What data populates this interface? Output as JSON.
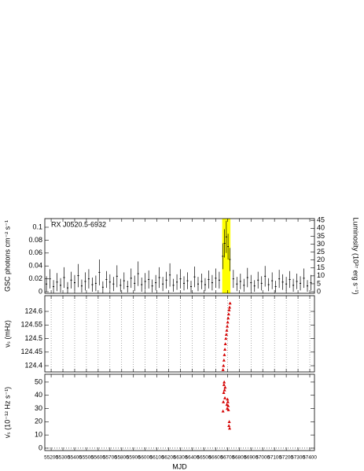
{
  "chart_data": [
    {
      "type": "errorbar",
      "annotation": "RX J0520.5-6932",
      "ylabel": "GSC photons cm⁻² s⁻¹",
      "y2label": "Luminosity (10³⁷ erg s⁻¹)",
      "color": "#000000",
      "highlight": [
        56655,
        56725
      ],
      "highlight_color": "#ffff00",
      "x": [
        55160,
        55190,
        55220,
        55250,
        55280,
        55310,
        55340,
        55370,
        55400,
        55430,
        55460,
        55490,
        55520,
        55550,
        55580,
        55610,
        55640,
        55670,
        55700,
        55730,
        55760,
        55790,
        55820,
        55850,
        55880,
        55910,
        55940,
        55970,
        56000,
        56030,
        56060,
        56090,
        56120,
        56150,
        56180,
        56210,
        56240,
        56270,
        56300,
        56330,
        56360,
        56390,
        56420,
        56450,
        56480,
        56510,
        56540,
        56570,
        56600,
        56630,
        56660,
        56675,
        56690,
        56705,
        56720,
        56750,
        56780,
        56810,
        56840,
        56870,
        56900,
        56930,
        56960,
        56990,
        57020,
        57050,
        57080,
        57110,
        57140,
        57170,
        57200,
        57230,
        57260,
        57290,
        57320,
        57350,
        57380,
        57410
      ],
      "values": [
        0.012,
        0.02,
        0.008,
        0.015,
        0.01,
        0.022,
        0.006,
        0.018,
        0.014,
        0.025,
        0.009,
        0.016,
        0.02,
        0.011,
        0.013,
        0.03,
        0.007,
        0.019,
        0.015,
        0.012,
        0.024,
        0.01,
        0.017,
        0.008,
        0.021,
        0.013,
        0.028,
        0.011,
        0.016,
        0.019,
        0.009,
        0.014,
        0.022,
        0.012,
        0.018,
        0.026,
        0.01,
        0.015,
        0.02,
        0.013,
        0.017,
        0.008,
        0.023,
        0.012,
        0.016,
        0.011,
        0.019,
        0.014,
        0.021,
        0.018,
        0.055,
        0.075,
        0.085,
        0.07,
        0.05,
        0.02,
        0.012,
        0.016,
        0.01,
        0.022,
        0.014,
        0.009,
        0.018,
        0.013,
        0.024,
        0.011,
        0.017,
        0.008,
        0.02,
        0.015,
        0.012,
        0.019,
        0.01,
        0.016,
        0.013,
        0.021,
        0.009,
        0.014
      ],
      "errors": [
        0.012,
        0.015,
        0.01,
        0.014,
        0.011,
        0.016,
        0.009,
        0.013,
        0.012,
        0.018,
        0.01,
        0.014,
        0.015,
        0.011,
        0.012,
        0.02,
        0.009,
        0.013,
        0.012,
        0.011,
        0.017,
        0.01,
        0.013,
        0.009,
        0.015,
        0.012,
        0.019,
        0.011,
        0.013,
        0.014,
        0.01,
        0.012,
        0.016,
        0.011,
        0.013,
        0.018,
        0.01,
        0.012,
        0.015,
        0.011,
        0.013,
        0.009,
        0.016,
        0.011,
        0.012,
        0.01,
        0.014,
        0.012,
        0.015,
        0.013,
        0.02,
        0.022,
        0.025,
        0.02,
        0.018,
        0.014,
        0.011,
        0.012,
        0.01,
        0.015,
        0.012,
        0.009,
        0.013,
        0.011,
        0.016,
        0.01,
        0.013,
        0.009,
        0.014,
        0.012,
        0.011,
        0.013,
        0.01,
        0.012,
        0.011,
        0.015,
        0.009,
        0.012
      ],
      "xlim": [
        55146,
        57440
      ],
      "ylim": [
        -0.0024,
        0.1134
      ],
      "yticks": [
        0,
        0.02,
        0.04,
        0.06,
        0.08,
        0.1
      ],
      "y2lim": [
        -0.98,
        46.1
      ],
      "y2ticks": [
        0,
        5,
        10,
        15,
        20,
        25,
        30,
        35,
        40,
        45
      ]
    },
    {
      "type": "scatter",
      "ylabel": "νₛ (mHz)",
      "color": "#d40000",
      "grid": true,
      "x": [
        56662,
        56666,
        56670,
        56674,
        56678,
        56682,
        56686,
        56690,
        56694,
        56698,
        56702,
        56706,
        56710,
        56714,
        56718,
        56722
      ],
      "values": [
        124.385,
        124.4,
        124.42,
        124.44,
        124.46,
        124.48,
        124.5,
        124.515,
        124.53,
        124.545,
        124.56,
        124.575,
        124.59,
        124.605,
        124.615,
        124.63
      ],
      "xlim": [
        55146,
        57440
      ],
      "ylim": [
        124.377,
        124.658
      ],
      "yticks": [
        124.4,
        124.45,
        124.5,
        124.55,
        124.6
      ]
    },
    {
      "type": "scatter",
      "ylabel": "ν̇ₛ (10⁻¹² Hz s⁻¹)",
      "xlabel": "MJD",
      "color": "#d40000",
      "x": [
        56662,
        56665,
        56668,
        56670,
        56672,
        56675,
        56678,
        56680,
        56695,
        56698,
        56700,
        56703,
        56706,
        56708,
        56712,
        56715,
        56718
      ],
      "values": [
        28,
        35,
        42,
        48,
        50,
        44,
        38,
        46,
        33,
        30,
        37,
        35,
        32,
        29,
        17,
        20,
        15
      ],
      "xlim": [
        55146,
        57440
      ],
      "ylim": [
        -1.8,
        55.9
      ],
      "yticks": [
        0,
        10,
        20,
        30,
        40,
        50
      ],
      "xticks": [
        55200,
        55300,
        55400,
        55500,
        55600,
        55700,
        55800,
        55900,
        56000,
        56100,
        56200,
        56300,
        56400,
        56500,
        56600,
        56700,
        56800,
        56900,
        57000,
        57100,
        57200,
        57300,
        57400
      ]
    }
  ]
}
